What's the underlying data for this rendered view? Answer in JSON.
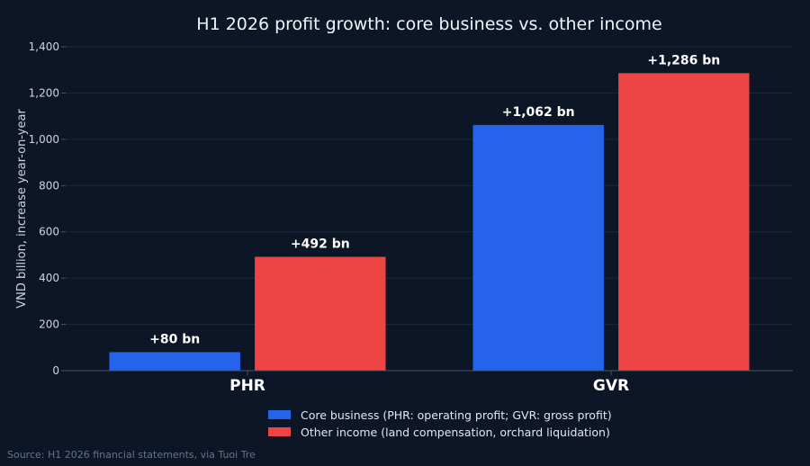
{
  "colors": {
    "background": "#0d1626",
    "core": "#2563eb",
    "other": "#ef4444"
  },
  "chart_data": {
    "type": "bar",
    "title": "H1 2026 profit growth: core business vs. other income",
    "ylabel": "VND billion, increase year-on-year",
    "xlabel": "",
    "ylim": [
      0,
      1400
    ],
    "yticks": [
      0,
      200,
      400,
      600,
      800,
      1000,
      1200,
      1400
    ],
    "ytick_labels": [
      "0",
      "200",
      "400",
      "600",
      "800",
      "1,000",
      "1,200",
      "1,400"
    ],
    "categories": [
      "PHR",
      "GVR"
    ],
    "grid": true,
    "legend_position": "bottom",
    "series": [
      {
        "name": "Core business (PHR: operating profit; GVR: gross profit)",
        "color": "#2563eb",
        "values": [
          80,
          1062
        ],
        "labels": [
          "+80 bn",
          "+1,062 bn"
        ]
      },
      {
        "name": "Other income (land compensation, orchard liquidation)",
        "color": "#ef4444",
        "values": [
          492,
          1286
        ],
        "labels": [
          "+492 bn",
          "+1,286 bn"
        ]
      }
    ]
  },
  "source": "Source: H1 2026 financial statements, via Tuoi Tre"
}
